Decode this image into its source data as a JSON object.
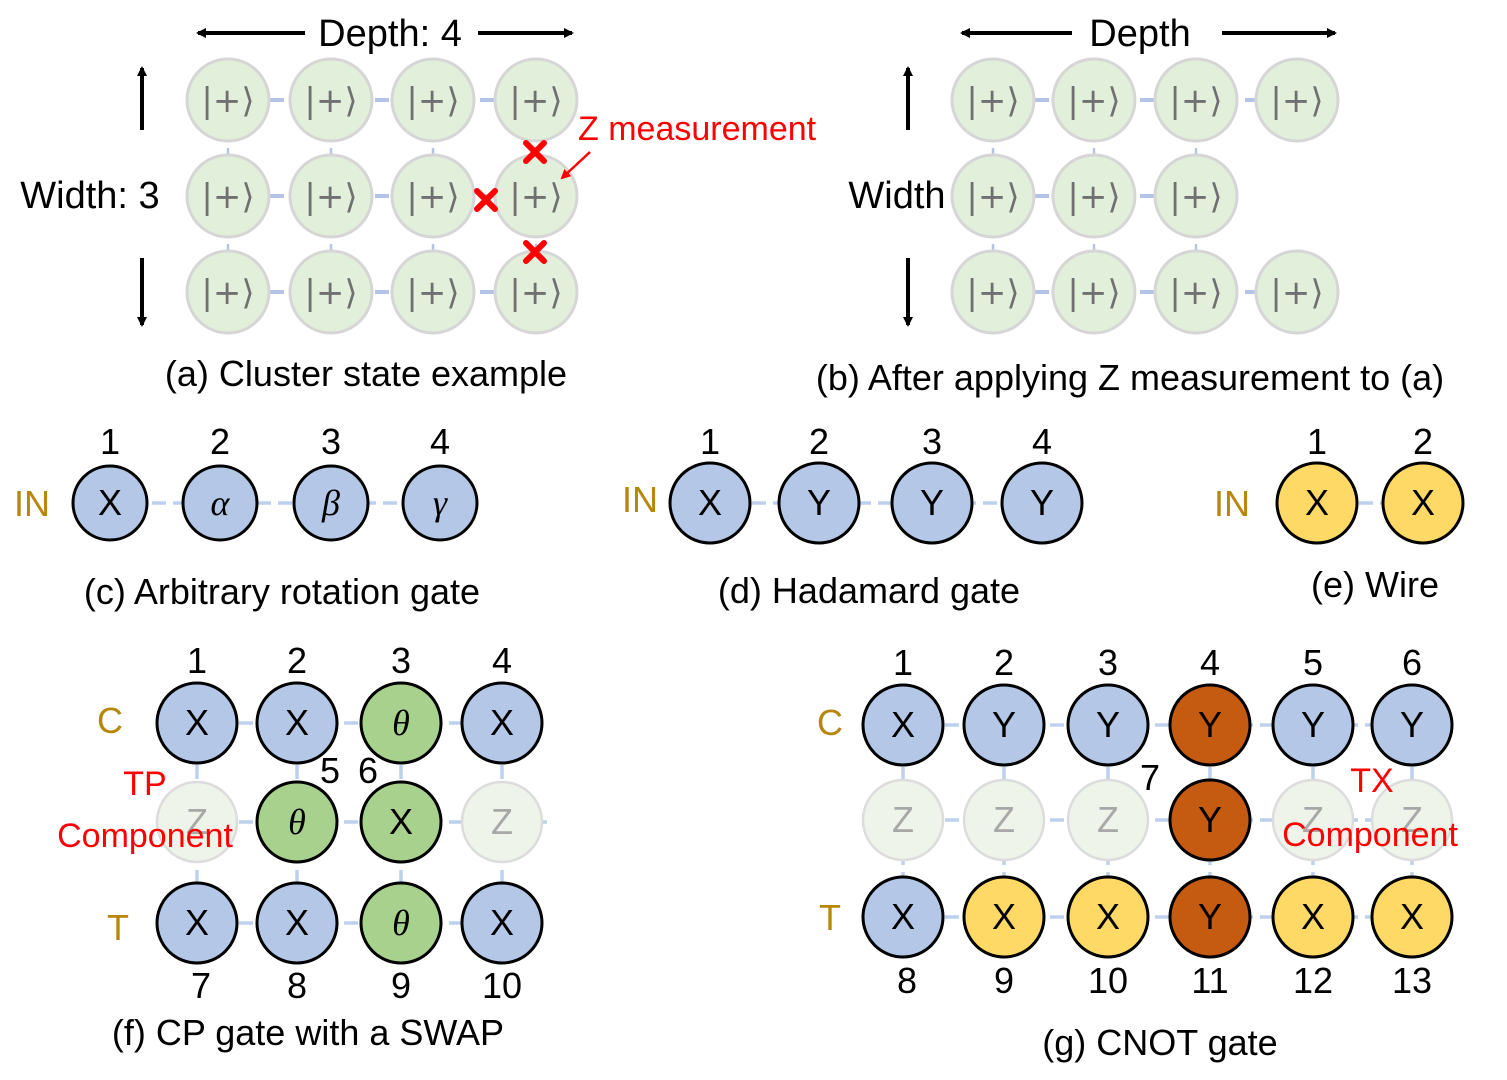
{
  "panel_a": {
    "depth_label": "Depth: 4",
    "width_label": "Width: 3",
    "z_label": "Z measurement",
    "node_label": "|+⟩",
    "caption": "(a) Cluster state example"
  },
  "panel_b": {
    "depth_label": "Depth",
    "width_label": "Width",
    "node_label": "|+⟩",
    "caption": "(b) After applying Z measurement to (a)"
  },
  "panel_c": {
    "in_label": "IN",
    "indices": [
      "1",
      "2",
      "3",
      "4"
    ],
    "nodes": [
      "X",
      "α",
      "β",
      "γ"
    ],
    "caption": "(c) Arbitrary rotation gate"
  },
  "panel_d": {
    "in_label": "IN",
    "indices": [
      "1",
      "2",
      "3",
      "4"
    ],
    "nodes": [
      "X",
      "Y",
      "Y",
      "Y"
    ],
    "caption": "(d) Hadamard gate"
  },
  "panel_e": {
    "in_label": "IN",
    "indices": [
      "1",
      "2"
    ],
    "nodes": [
      "X",
      "X"
    ],
    "caption": "(e) Wire"
  },
  "panel_f": {
    "c_label": "C",
    "t_label": "T",
    "component_label_1": "TP",
    "component_label_2": "Component",
    "top_indices": [
      "1",
      "2",
      "3",
      "4"
    ],
    "mid_indices": [
      "5",
      "6"
    ],
    "bottom_indices": [
      "7",
      "8",
      "9",
      "10"
    ],
    "top_nodes": [
      "X",
      "X",
      "θ",
      "X"
    ],
    "mid_nodes": [
      "Z",
      "θ",
      "X",
      "Z"
    ],
    "bottom_nodes": [
      "X",
      "X",
      "θ",
      "X"
    ],
    "caption": "(f) CP gate with a SWAP"
  },
  "panel_g": {
    "c_label": "C",
    "t_label": "T",
    "component_label_1": "TX",
    "component_label_2": "Component",
    "top_indices": [
      "1",
      "2",
      "3",
      "4",
      "5",
      "6"
    ],
    "mid_index": "7",
    "bottom_indices": [
      "8",
      "9",
      "10",
      "11",
      "12",
      "13"
    ],
    "top_nodes": [
      "X",
      "Y",
      "Y",
      "Y",
      "Y",
      "Y"
    ],
    "mid_nodes": [
      "Z",
      "Z",
      "Z",
      "Y",
      "Z",
      "Z"
    ],
    "bottom_nodes": [
      "X",
      "X",
      "X",
      "Y",
      "X",
      "X"
    ],
    "caption": "(g) CNOT gate"
  },
  "colors": {
    "blue_node": "#b4c7e7",
    "green_node": "#a9d18e",
    "yellow_node": "#ffd966",
    "orange_node": "#c55a11",
    "cluster_node": "#e2efda",
    "gold_text": "#b8860b",
    "red_text": "#ff0000"
  }
}
